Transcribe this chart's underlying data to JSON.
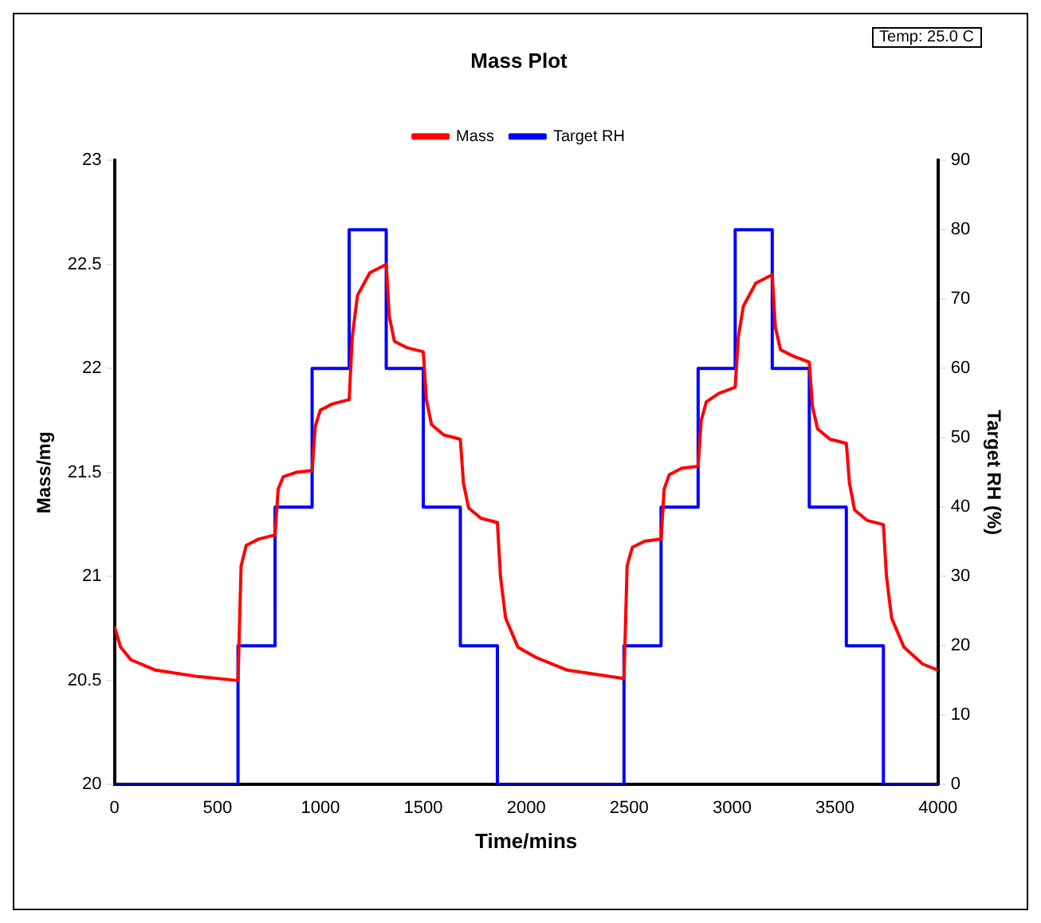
{
  "chart_data": {
    "type": "line",
    "title": "Mass Plot",
    "xlabel": "Time/mins",
    "ylabel": "Mass/mg",
    "y2label": "Target RH (%)",
    "annotations": [
      "Temp: 25.0 C"
    ],
    "xlim": [
      0,
      4000
    ],
    "xticks": [
      0,
      500,
      1000,
      1500,
      2000,
      2500,
      3000,
      3500,
      4000
    ],
    "ylim": [
      20,
      23
    ],
    "yticks": [
      20,
      20.5,
      21,
      21.5,
      22,
      22.5,
      23
    ],
    "y2lim": [
      0,
      90
    ],
    "y2ticks": [
      0,
      10,
      20,
      30,
      40,
      50,
      60,
      70,
      80,
      90
    ],
    "grid": false,
    "legend": "top",
    "marker": "none",
    "series": [
      {
        "name": "Mass",
        "color": "#ff0000",
        "x": [
          0,
          30,
          80,
          200,
          400,
          600,
          615,
          640,
          700,
          780,
          795,
          820,
          880,
          960,
          975,
          1000,
          1060,
          1140,
          1155,
          1180,
          1240,
          1320,
          1335,
          1360,
          1420,
          1500,
          1515,
          1540,
          1600,
          1680,
          1695,
          1720,
          1780,
          1860,
          1875,
          1900,
          1960,
          2050,
          2200,
          2475,
          2490,
          2515,
          2575,
          2655,
          2670,
          2695,
          2755,
          2835,
          2850,
          2875,
          2935,
          3015,
          3030,
          3055,
          3115,
          3195,
          3210,
          3235,
          3295,
          3375,
          3390,
          3415,
          3475,
          3555,
          3570,
          3595,
          3655,
          3735,
          3750,
          3775,
          3835,
          3925,
          4000
        ],
        "values": [
          20.76,
          20.66,
          20.6,
          20.55,
          20.52,
          20.5,
          21.05,
          21.15,
          21.18,
          21.2,
          21.42,
          21.48,
          21.5,
          21.51,
          21.72,
          21.8,
          21.83,
          21.85,
          22.15,
          22.35,
          22.46,
          22.5,
          22.25,
          22.13,
          22.1,
          22.08,
          21.85,
          21.73,
          21.68,
          21.66,
          21.45,
          21.33,
          21.28,
          21.26,
          21.0,
          20.8,
          20.66,
          20.61,
          20.55,
          20.51,
          21.05,
          21.14,
          21.17,
          21.18,
          21.42,
          21.49,
          21.52,
          21.53,
          21.75,
          21.84,
          21.88,
          21.91,
          22.15,
          22.3,
          22.41,
          22.45,
          22.2,
          22.09,
          22.06,
          22.03,
          21.82,
          21.71,
          21.66,
          21.64,
          21.45,
          21.32,
          21.27,
          21.25,
          21.0,
          20.8,
          20.66,
          20.58,
          20.55
        ]
      },
      {
        "name": "Target RH",
        "color": "#0000ff",
        "type": "step",
        "axis": "y2",
        "x": [
          0,
          600,
          780,
          960,
          1140,
          1320,
          1500,
          1680,
          1860,
          2475,
          2655,
          2835,
          3015,
          3195,
          3375,
          3555,
          3735,
          4000
        ],
        "values": [
          0,
          20,
          40,
          60,
          80,
          60,
          40,
          20,
          0,
          20,
          40,
          60,
          80,
          60,
          40,
          20,
          0,
          0
        ]
      }
    ]
  }
}
